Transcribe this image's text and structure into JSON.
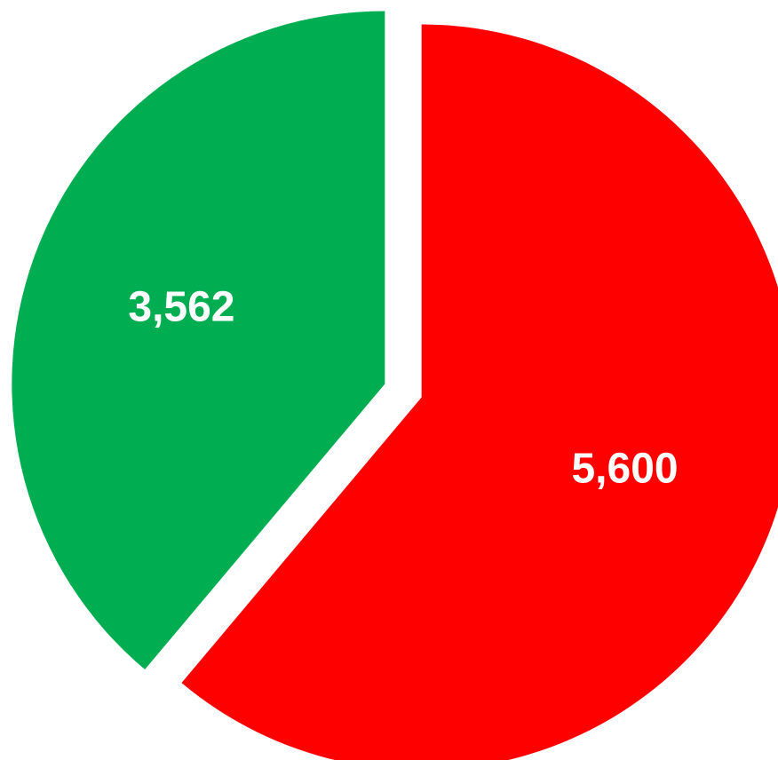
{
  "chart_data": {
    "type": "pie",
    "slices": [
      {
        "label": "5,600",
        "value": 5600,
        "color": "#ff0000"
      },
      {
        "label": "3,562",
        "value": 3562,
        "color": "#00ad50"
      }
    ]
  }
}
